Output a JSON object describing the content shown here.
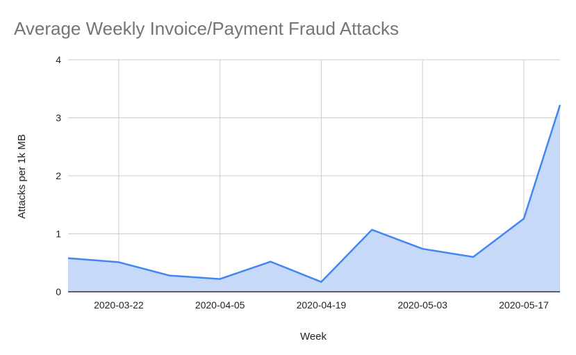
{
  "chart_data": {
    "type": "area",
    "title": "Average Weekly Invoice/Payment Fraud Attacks",
    "xlabel": "Week",
    "ylabel": "Attacks per 1k MB",
    "x": [
      "2020-03-15",
      "2020-03-22",
      "2020-03-29",
      "2020-04-05",
      "2020-04-12",
      "2020-04-19",
      "2020-04-26",
      "2020-05-03",
      "2020-05-10",
      "2020-05-17",
      "2020-05-22"
    ],
    "values": [
      0.58,
      0.51,
      0.28,
      0.22,
      0.52,
      0.17,
      1.07,
      0.74,
      0.6,
      1.26,
      3.22
    ],
    "x_tick_labels": [
      "2020-03-22",
      "2020-04-05",
      "2020-04-19",
      "2020-05-03",
      "2020-05-17"
    ],
    "y_ticks": [
      "0",
      "1",
      "2",
      "3",
      "4"
    ],
    "ylim": [
      0,
      4
    ],
    "grid": true,
    "legend": "none",
    "line_color": "#4285f4",
    "fill_color": "#c6d9f8"
  }
}
